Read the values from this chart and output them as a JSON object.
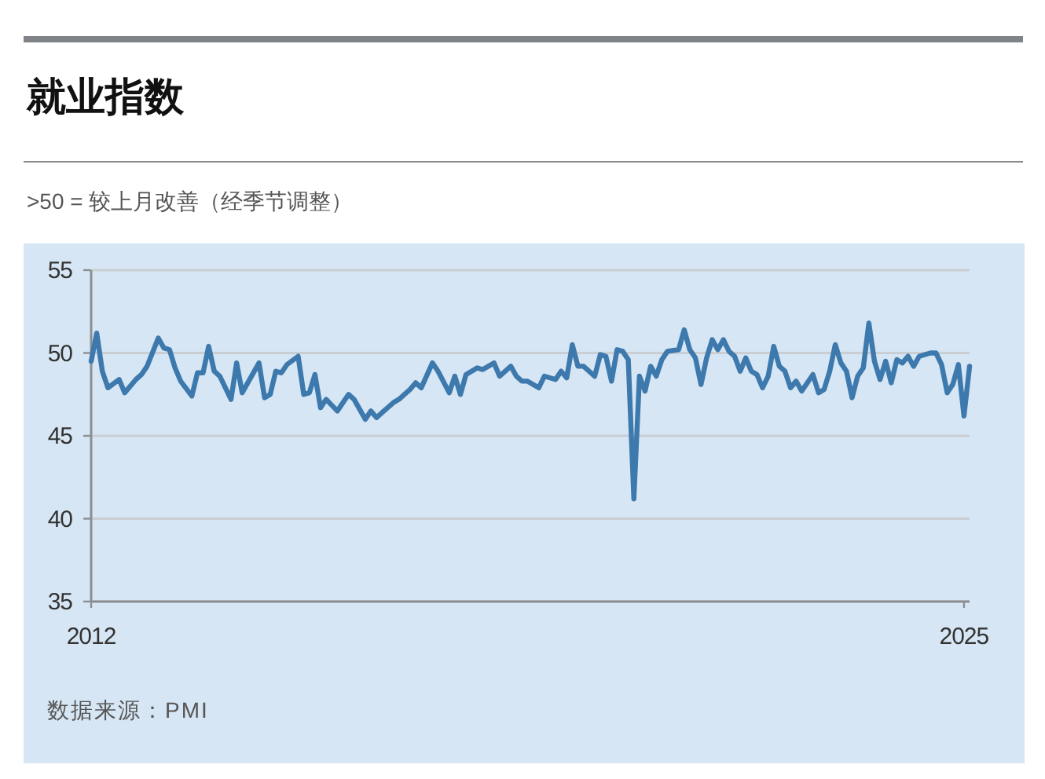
{
  "chart_data": {
    "type": "line",
    "title": "就业指数",
    "subtitle": ">50 = 较上月改善（经季节调整）",
    "annotations": [
      "数据来源：PMI"
    ],
    "xlim": [
      "2012-01",
      "2025-02"
    ],
    "xticks": [
      {
        "value": "2012-01",
        "label": "2012"
      },
      {
        "value": "2025-01",
        "label": "2025"
      }
    ],
    "ylim": [
      35,
      55
    ],
    "yticks": [
      35,
      40,
      45,
      50,
      55
    ],
    "grid": "y",
    "series": [
      {
        "color": "#3d79ad",
        "x": [
          "2012-01",
          "2012-02",
          "2012-03",
          "2012-04",
          "2012-06",
          "2012-07",
          "2012-09",
          "2012-10",
          "2012-11",
          "2013-01",
          "2013-02",
          "2013-03",
          "2013-04",
          "2013-05",
          "2013-07",
          "2013-08",
          "2013-09",
          "2013-10",
          "2013-11",
          "2013-12",
          "2014-02",
          "2014-03",
          "2014-04",
          "2014-07",
          "2014-08",
          "2014-09",
          "2014-10",
          "2014-11",
          "2014-12",
          "2015-02",
          "2015-03",
          "2015-04",
          "2015-05",
          "2015-06",
          "2015-07",
          "2015-09",
          "2015-11",
          "2015-12",
          "2016-02",
          "2016-03",
          "2016-04",
          "2016-05",
          "2016-07",
          "2016-08",
          "2016-10",
          "2016-11",
          "2016-12",
          "2017-02",
          "2017-03",
          "2017-05",
          "2017-06",
          "2017-07",
          "2017-08",
          "2017-10",
          "2017-11",
          "2018-01",
          "2018-02",
          "2018-04",
          "2018-05",
          "2018-06",
          "2018-07",
          "2018-09",
          "2018-10",
          "2018-12",
          "2019-01",
          "2019-02",
          "2019-03",
          "2019-04",
          "2019-05",
          "2019-07",
          "2019-08",
          "2019-09",
          "2019-10",
          "2019-11",
          "2019-12",
          "2020-01",
          "2020-02",
          "2020-03",
          "2020-04",
          "2020-05",
          "2020-06",
          "2020-07",
          "2020-08",
          "2020-10",
          "2020-11",
          "2020-12",
          "2021-01",
          "2021-02",
          "2021-03",
          "2021-04",
          "2021-05",
          "2021-06",
          "2021-07",
          "2021-08",
          "2021-09",
          "2021-10",
          "2021-11",
          "2021-12",
          "2022-01",
          "2022-02",
          "2022-03",
          "2022-04",
          "2022-05",
          "2022-06",
          "2022-07",
          "2022-08",
          "2022-09",
          "2022-10",
          "2022-11",
          "2022-12",
          "2023-01",
          "2023-02",
          "2023-03",
          "2023-04",
          "2023-05",
          "2023-06",
          "2023-07",
          "2023-08",
          "2023-09",
          "2023-10",
          "2023-11",
          "2023-12",
          "2024-01",
          "2024-02",
          "2024-03",
          "2024-04",
          "2024-05",
          "2024-07",
          "2024-08",
          "2024-09",
          "2024-10",
          "2024-11",
          "2024-12",
          "2025-01",
          "2025-02"
        ],
        "values": [
          49.5,
          51.2,
          48.9,
          47.9,
          48.4,
          47.6,
          48.4,
          48.7,
          49.2,
          50.9,
          50.3,
          50.2,
          49.1,
          48.3,
          47.4,
          48.8,
          48.8,
          50.4,
          48.9,
          48.6,
          47.2,
          49.4,
          47.6,
          49.4,
          47.3,
          47.5,
          48.9,
          48.8,
          49.3,
          49.8,
          47.5,
          47.6,
          48.7,
          46.7,
          47.2,
          46.5,
          47.5,
          47.2,
          46.0,
          46.5,
          46.1,
          46.4,
          47.0,
          47.2,
          47.8,
          48.2,
          47.9,
          49.4,
          48.9,
          47.6,
          48.6,
          47.5,
          48.7,
          49.1,
          49.0,
          49.4,
          48.6,
          49.2,
          48.6,
          48.3,
          48.3,
          47.9,
          48.6,
          48.4,
          48.9,
          48.5,
          50.5,
          49.2,
          49.2,
          48.6,
          49.9,
          49.8,
          48.3,
          50.2,
          50.1,
          49.6,
          41.2,
          48.6,
          47.7,
          49.2,
          48.6,
          49.6,
          50.1,
          50.2,
          51.4,
          50.2,
          49.7,
          48.1,
          49.7,
          50.8,
          50.2,
          50.8,
          50.1,
          49.8,
          48.9,
          49.7,
          48.9,
          48.7,
          47.9,
          48.6,
          50.4,
          49.2,
          48.9,
          47.9,
          48.3,
          47.7,
          48.2,
          48.7,
          47.6,
          47.8,
          48.9,
          50.5,
          49.4,
          48.9,
          47.3,
          48.6,
          49.1,
          51.8,
          49.5,
          48.4,
          49.5,
          48.2,
          49.6,
          49.4,
          49.8,
          49.2,
          49.8,
          50.0,
          50.0,
          49.3,
          47.6,
          48.1,
          49.3,
          46.2,
          49.2
        ]
      }
    ]
  }
}
